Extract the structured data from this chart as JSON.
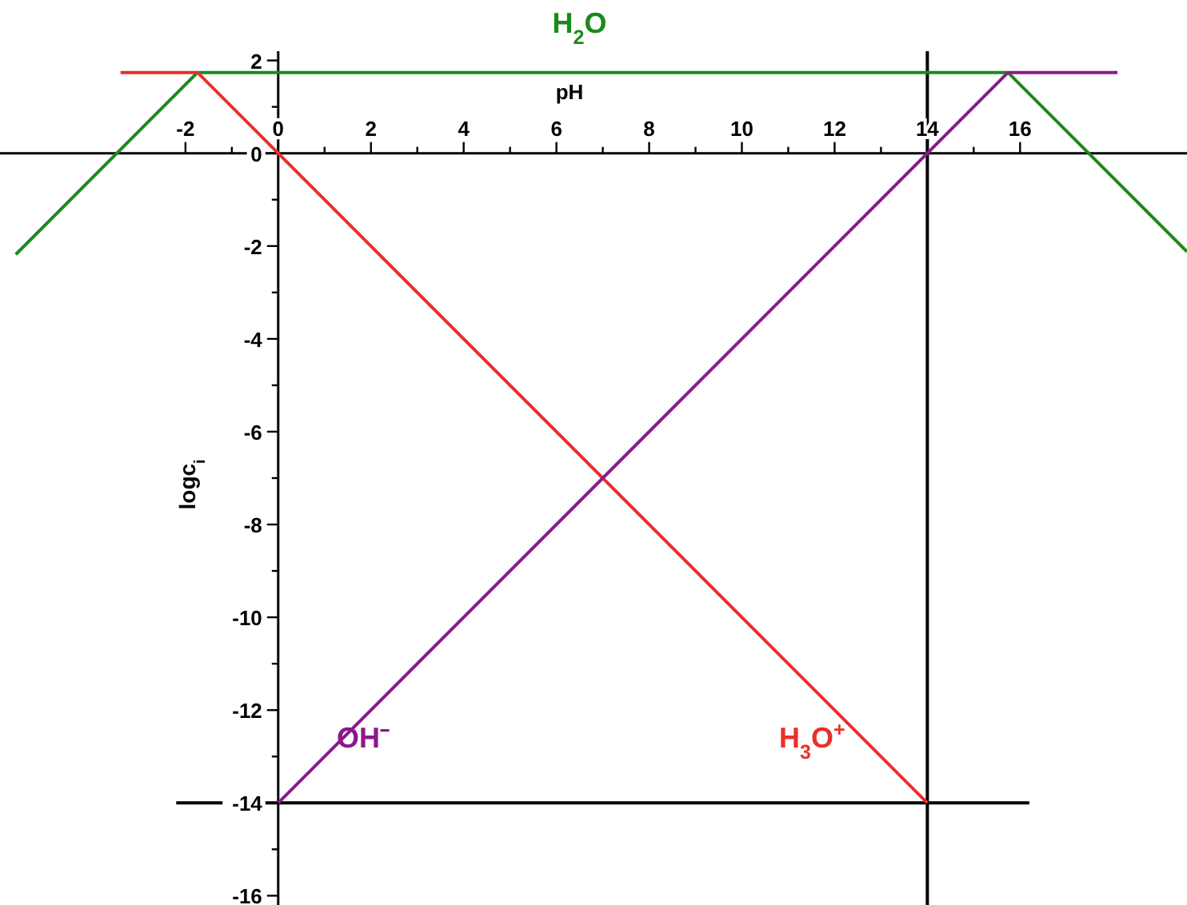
{
  "chart_data": {
    "type": "line",
    "xlabel": "pH",
    "ylabel": "logc$_{i}$",
    "xlim": [
      -6,
      19.6
    ],
    "ylim": [
      -16.2,
      2.2
    ],
    "xticks": [
      -2,
      {
        "value": -1,
        "label": null
      },
      0,
      {
        "value": 1,
        "label": null
      },
      2,
      {
        "value": 3,
        "label": null
      },
      4,
      {
        "value": 5,
        "label": null
      },
      6,
      {
        "value": 7,
        "label": null
      },
      8,
      {
        "value": 9,
        "label": null
      },
      10,
      {
        "value": 11,
        "label": null
      },
      12,
      {
        "value": 13,
        "label": null
      },
      14,
      {
        "value": 15,
        "label": null
      },
      16
    ],
    "yticks": [
      2,
      {
        "value": 1,
        "label": null
      },
      0,
      {
        "value": -1,
        "label": null
      },
      -2,
      {
        "value": -3,
        "label": null
      },
      -4,
      {
        "value": -5,
        "label": null
      },
      -6,
      {
        "value": -7,
        "label": null
      },
      -8,
      {
        "value": -9,
        "label": null
      },
      -10,
      {
        "value": -11,
        "label": null
      },
      -12,
      {
        "value": -13,
        "label": null
      },
      -14,
      {
        "value": -15,
        "label": null
      },
      -16
    ],
    "grid": false,
    "legend": false,
    "marker": "none",
    "line_style": "solid",
    "series": [
      {
        "name": "H$_{2}$O",
        "color": "#1a8a1a",
        "x": [
          -5.66,
          -1.74,
          15.74,
          19.6
        ],
        "values": [
          -2.18,
          1.74,
          1.74,
          -2.12
        ]
      },
      {
        "name": "H$_{3}$O$^{+}$",
        "color": "#e8302a",
        "x": [
          -3.4,
          -1.74,
          14
        ],
        "values": [
          1.74,
          1.74,
          -14
        ]
      },
      {
        "name": "OH⁻",
        "color": "#8b1a8b",
        "x": [
          0,
          15.74,
          18.1
        ],
        "values": [
          -14,
          1.74,
          1.74
        ]
      }
    ],
    "ref_lines": [
      {
        "axis": "y",
        "value": -14,
        "color": "#000000"
      },
      {
        "axis": "x",
        "value": 14,
        "color": "#000000"
      }
    ]
  }
}
